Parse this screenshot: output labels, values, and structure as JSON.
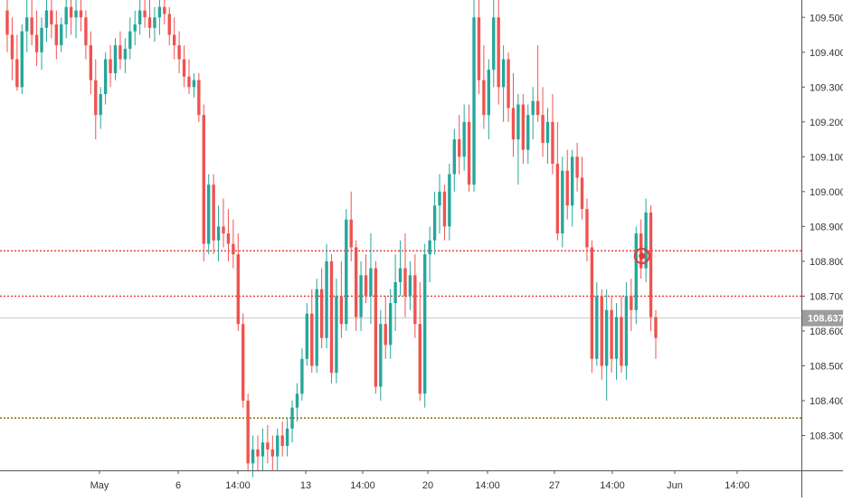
{
  "chart_data": {
    "type": "candlestick",
    "colors": {
      "up": "#26a69a",
      "down": "#ef5350",
      "level": "#e53935",
      "support": "#8c7a1a",
      "current_line": "#c8c8c8",
      "price_tag": "#9e9e9e",
      "marker": "#e53935"
    },
    "y_axis": {
      "ticks": [
        "109.500",
        "109.400",
        "109.300",
        "109.200",
        "109.100",
        "109.000",
        "108.900",
        "108.800",
        "108.700",
        "108.600",
        "108.500",
        "108.400",
        "108.300"
      ],
      "ylim": [
        108.2,
        109.55
      ]
    },
    "x_axis": {
      "tick_labels": [
        "May",
        "6",
        "14:00",
        "13",
        "14:00",
        "20",
        "14:00",
        "27",
        "14:00",
        "Jun",
        "14:00"
      ]
    },
    "horizontal_levels": [
      {
        "price": 108.83,
        "style": "dotted",
        "color": "#e53935"
      },
      {
        "price": 108.7,
        "style": "dotted",
        "color": "#e53935"
      },
      {
        "price": 108.35,
        "style": "dotted",
        "color": "#8c7a1a"
      }
    ],
    "current_price": {
      "value": 108.637,
      "label": "108.637"
    },
    "marker": {
      "price": 108.81,
      "shape": "circle"
    },
    "grid": false,
    "series": [
      {
        "ohlc": [
          [
            109.52,
            109.55,
            109.4,
            109.45
          ],
          [
            109.45,
            109.5,
            109.32,
            109.38
          ],
          [
            109.38,
            109.45,
            109.29,
            109.3
          ],
          [
            109.3,
            109.48,
            109.28,
            109.46
          ],
          [
            109.46,
            109.55,
            109.4,
            109.5
          ],
          [
            109.5,
            109.55,
            109.42,
            109.45
          ],
          [
            109.45,
            109.52,
            109.36,
            109.4
          ],
          [
            109.4,
            109.5,
            109.35,
            109.47
          ],
          [
            109.47,
            109.55,
            109.43,
            109.52
          ],
          [
            109.52,
            109.55,
            109.44,
            109.48
          ],
          [
            109.48,
            109.52,
            109.38,
            109.42
          ],
          [
            109.42,
            109.5,
            109.4,
            109.48
          ],
          [
            109.48,
            109.55,
            109.44,
            109.53
          ],
          [
            109.53,
            109.55,
            109.45,
            109.5
          ],
          [
            109.5,
            109.55,
            109.44,
            109.52
          ],
          [
            109.52,
            109.55,
            109.46,
            109.5
          ],
          [
            109.5,
            109.52,
            109.38,
            109.42
          ],
          [
            109.42,
            109.46,
            109.28,
            109.32
          ],
          [
            109.32,
            109.38,
            109.15,
            109.22
          ],
          [
            109.22,
            109.3,
            109.18,
            109.28
          ],
          [
            109.28,
            109.4,
            109.25,
            109.38
          ],
          [
            109.38,
            109.42,
            109.3,
            109.34
          ],
          [
            109.34,
            109.44,
            109.32,
            109.42
          ],
          [
            109.42,
            109.46,
            109.35,
            109.38
          ],
          [
            109.38,
            109.44,
            109.34,
            109.41
          ],
          [
            109.41,
            109.5,
            109.38,
            109.46
          ],
          [
            109.46,
            109.52,
            109.42,
            109.48
          ],
          [
            109.48,
            109.55,
            109.45,
            109.52
          ],
          [
            109.52,
            109.55,
            109.47,
            109.5
          ],
          [
            109.5,
            109.55,
            109.44,
            109.47
          ],
          [
            109.47,
            109.53,
            109.43,
            109.5
          ],
          [
            109.5,
            109.55,
            109.45,
            109.53
          ],
          [
            109.53,
            109.55,
            109.48,
            109.51
          ],
          [
            109.51,
            109.53,
            109.42,
            109.45
          ],
          [
            109.45,
            109.5,
            109.38,
            109.42
          ],
          [
            109.42,
            109.46,
            109.34,
            109.38
          ],
          [
            109.38,
            109.42,
            109.3,
            109.33
          ],
          [
            109.33,
            109.38,
            109.28,
            109.3
          ],
          [
            109.3,
            109.34,
            109.27,
            109.32
          ],
          [
            109.32,
            109.34,
            109.2,
            109.22
          ],
          [
            109.22,
            109.25,
            108.8,
            108.85
          ],
          [
            108.85,
            109.05,
            108.82,
            109.02
          ],
          [
            109.02,
            109.05,
            108.82,
            108.86
          ],
          [
            108.86,
            108.96,
            108.8,
            108.9
          ],
          [
            108.9,
            108.98,
            108.84,
            108.88
          ],
          [
            108.88,
            108.95,
            108.8,
            108.85
          ],
          [
            108.85,
            108.92,
            108.78,
            108.82
          ],
          [
            108.82,
            108.88,
            108.6,
            108.62
          ],
          [
            108.62,
            108.65,
            108.38,
            108.4
          ],
          [
            108.4,
            108.42,
            108.2,
            108.22
          ],
          [
            108.22,
            108.3,
            108.18,
            108.26
          ],
          [
            108.26,
            108.3,
            108.2,
            108.24
          ],
          [
            108.24,
            108.32,
            108.2,
            108.28
          ],
          [
            108.28,
            108.33,
            108.22,
            108.26
          ],
          [
            108.26,
            108.3,
            108.2,
            108.24
          ],
          [
            108.24,
            108.32,
            108.2,
            108.3
          ],
          [
            108.3,
            108.34,
            108.24,
            108.27
          ],
          [
            108.27,
            108.35,
            108.24,
            108.32
          ],
          [
            108.32,
            108.4,
            108.28,
            108.38
          ],
          [
            108.38,
            108.45,
            108.34,
            108.42
          ],
          [
            108.42,
            108.55,
            108.4,
            108.52
          ],
          [
            108.52,
            108.68,
            108.5,
            108.65
          ],
          [
            108.65,
            108.72,
            108.48,
            108.5
          ],
          [
            108.5,
            108.75,
            108.48,
            108.72
          ],
          [
            108.72,
            108.78,
            108.55,
            108.58
          ],
          [
            108.58,
            108.85,
            108.55,
            108.8
          ],
          [
            108.8,
            108.82,
            108.45,
            108.48
          ],
          [
            108.48,
            108.75,
            108.45,
            108.7
          ],
          [
            108.7,
            108.8,
            108.58,
            108.62
          ],
          [
            108.62,
            108.95,
            108.6,
            108.92
          ],
          [
            108.92,
            109.0,
            108.8,
            108.84
          ],
          [
            108.84,
            108.86,
            108.6,
            108.64
          ],
          [
            108.64,
            108.8,
            108.6,
            108.76
          ],
          [
            108.76,
            108.82,
            108.68,
            108.7
          ],
          [
            108.7,
            108.88,
            108.62,
            108.78
          ],
          [
            108.78,
            108.8,
            108.42,
            108.44
          ],
          [
            108.44,
            108.66,
            108.4,
            108.62
          ],
          [
            108.62,
            108.7,
            108.52,
            108.56
          ],
          [
            108.56,
            108.72,
            108.52,
            108.68
          ],
          [
            108.68,
            108.82,
            108.6,
            108.74
          ],
          [
            108.74,
            108.86,
            108.7,
            108.78
          ],
          [
            108.78,
            108.88,
            108.64,
            108.7
          ],
          [
            108.7,
            108.8,
            108.66,
            108.76
          ],
          [
            108.76,
            108.82,
            108.58,
            108.62
          ],
          [
            108.62,
            108.74,
            108.4,
            108.42
          ],
          [
            108.42,
            108.85,
            108.38,
            108.82
          ],
          [
            108.82,
            108.9,
            108.74,
            108.86
          ],
          [
            108.86,
            109.0,
            108.82,
            108.96
          ],
          [
            108.96,
            109.05,
            108.88,
            109.0
          ],
          [
            109.0,
            109.02,
            108.86,
            108.9
          ],
          [
            108.9,
            109.08,
            108.86,
            109.05
          ],
          [
            109.05,
            109.18,
            109.0,
            109.15
          ],
          [
            109.15,
            109.22,
            109.05,
            109.1
          ],
          [
            109.1,
            109.25,
            109.06,
            109.2
          ],
          [
            109.2,
            109.25,
            109.0,
            109.02
          ],
          [
            109.02,
            109.55,
            109.0,
            109.5
          ],
          [
            109.5,
            109.55,
            109.28,
            109.32
          ],
          [
            109.32,
            109.42,
            109.18,
            109.22
          ],
          [
            109.22,
            109.38,
            109.15,
            109.35
          ],
          [
            109.35,
            109.55,
            109.3,
            109.5
          ],
          [
            109.5,
            109.55,
            109.25,
            109.3
          ],
          [
            109.3,
            109.42,
            109.2,
            109.38
          ],
          [
            109.38,
            109.4,
            109.2,
            109.24
          ],
          [
            109.24,
            109.34,
            109.1,
            109.15
          ],
          [
            109.15,
            109.28,
            109.02,
            109.25
          ],
          [
            109.25,
            109.28,
            109.08,
            109.12
          ],
          [
            109.12,
            109.25,
            109.08,
            109.22
          ],
          [
            109.22,
            109.3,
            109.15,
            109.26
          ],
          [
            109.26,
            109.42,
            109.2,
            109.22
          ],
          [
            109.22,
            109.3,
            109.1,
            109.14
          ],
          [
            109.14,
            109.24,
            109.08,
            109.2
          ],
          [
            109.2,
            109.28,
            109.05,
            109.08
          ],
          [
            109.08,
            109.2,
            108.86,
            108.88
          ],
          [
            108.88,
            109.1,
            108.84,
            109.06
          ],
          [
            109.06,
            109.12,
            108.92,
            108.96
          ],
          [
            108.96,
            109.12,
            108.9,
            109.1
          ],
          [
            109.1,
            109.14,
            109.0,
            109.04
          ],
          [
            109.04,
            109.1,
            108.92,
            108.95
          ],
          [
            108.95,
            108.98,
            108.8,
            108.84
          ],
          [
            108.84,
            108.86,
            108.48,
            108.52
          ],
          [
            108.52,
            108.74,
            108.5,
            108.7
          ],
          [
            108.7,
            108.72,
            108.46,
            108.5
          ],
          [
            108.5,
            108.72,
            108.4,
            108.66
          ],
          [
            108.66,
            108.7,
            108.48,
            108.52
          ],
          [
            108.52,
            108.68,
            108.46,
            108.64
          ],
          [
            108.64,
            108.7,
            108.48,
            108.5
          ],
          [
            108.5,
            108.74,
            108.46,
            108.7
          ],
          [
            108.7,
            108.75,
            108.6,
            108.66
          ],
          [
            108.66,
            108.9,
            108.62,
            108.88
          ],
          [
            108.88,
            108.92,
            108.75,
            108.78
          ],
          [
            108.78,
            108.98,
            108.74,
            108.94
          ],
          [
            108.94,
            108.96,
            108.6,
            108.64
          ],
          [
            108.64,
            108.66,
            108.52,
            108.58
          ]
        ]
      }
    ]
  }
}
